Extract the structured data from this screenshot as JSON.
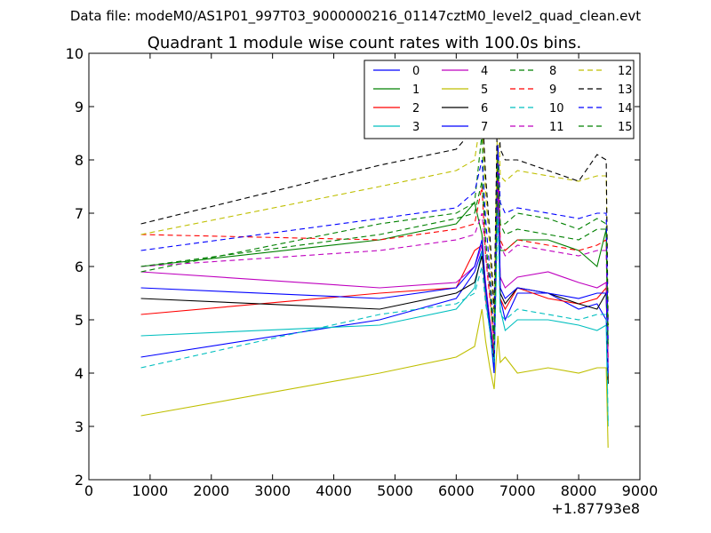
{
  "chart_data": {
    "type": "line",
    "suptitle": "Data file: modeM0/AS1P01_997T03_9000000216_01147cztM0_level2_quad_clean.evt",
    "title": "Quadrant 1 module wise count rates with 100.0s bins.",
    "xlabel": "",
    "ylabel": "",
    "x_offset_label": "+1.87793e8",
    "xlim": [
      0,
      9000
    ],
    "ylim": [
      2,
      10
    ],
    "x_ticks": [
      0,
      1000,
      2000,
      3000,
      4000,
      5000,
      6000,
      7000,
      8000,
      9000
    ],
    "y_ticks": [
      2,
      3,
      4,
      5,
      6,
      7,
      8,
      9,
      10
    ],
    "x_tick_labels": [
      "0",
      "1000",
      "2000",
      "3000",
      "4000",
      "5000",
      "6000",
      "7000",
      "8000",
      "9000"
    ],
    "y_tick_labels": [
      "2",
      "3",
      "4",
      "5",
      "6",
      "7",
      "8",
      "9",
      "10"
    ],
    "grid": false,
    "legend_position": "top-right",
    "x": [
      850,
      4750,
      6000,
      6300,
      6420,
      6480,
      6550,
      6620,
      6680,
      6720,
      6800,
      7000,
      7500,
      8000,
      8300,
      8450,
      8480
    ],
    "series": [
      {
        "name": "0",
        "color": "#0000ff",
        "style": "solid",
        "values": [
          4.3,
          5.0,
          5.4,
          5.9,
          6.3,
          5.4,
          4.8,
          4.3,
          7.9,
          5.4,
          5.0,
          5.5,
          5.5,
          5.2,
          5.3,
          5.0,
          4.1
        ]
      },
      {
        "name": "1",
        "color": "#008000",
        "style": "solid",
        "values": [
          6.0,
          6.5,
          6.8,
          7.2,
          6.6,
          5.6,
          5.0,
          4.4,
          8.2,
          6.3,
          6.3,
          6.5,
          6.5,
          6.3,
          6.0,
          6.7,
          3.8
        ]
      },
      {
        "name": "2",
        "color": "#ff0000",
        "style": "solid",
        "values": [
          5.1,
          5.5,
          5.6,
          6.3,
          6.4,
          5.4,
          4.9,
          4.3,
          8.0,
          5.4,
          5.2,
          5.6,
          5.4,
          5.3,
          5.4,
          5.6,
          3.9
        ]
      },
      {
        "name": "3",
        "color": "#00bfbf",
        "style": "solid",
        "values": [
          4.7,
          4.9,
          5.2,
          5.6,
          6.3,
          5.5,
          4.8,
          4.0,
          7.5,
          5.2,
          4.8,
          5.0,
          5.0,
          4.9,
          4.8,
          4.9,
          3.0
        ]
      },
      {
        "name": "4",
        "color": "#bf00bf",
        "style": "solid",
        "values": [
          5.9,
          5.6,
          5.7,
          6.0,
          6.4,
          5.7,
          5.0,
          4.4,
          7.6,
          5.8,
          5.6,
          5.8,
          5.9,
          5.7,
          5.6,
          5.7,
          4.2
        ]
      },
      {
        "name": "5",
        "color": "#bfbf00",
        "style": "solid",
        "values": [
          3.2,
          4.0,
          4.3,
          4.5,
          5.2,
          4.6,
          4.1,
          3.7,
          4.7,
          4.2,
          4.3,
          4.0,
          4.1,
          4.0,
          4.1,
          4.1,
          2.6
        ]
      },
      {
        "name": "6",
        "color": "#000000",
        "style": "solid",
        "values": [
          5.4,
          5.2,
          5.5,
          5.7,
          6.2,
          5.6,
          4.9,
          4.2,
          8.1,
          5.5,
          5.3,
          5.6,
          5.5,
          5.3,
          5.2,
          5.5,
          3.8
        ]
      },
      {
        "name": "7",
        "color": "#0000ff",
        "style": "solid",
        "values": [
          5.6,
          5.4,
          5.6,
          6.0,
          6.5,
          5.6,
          4.9,
          4.0,
          8.2,
          5.6,
          5.4,
          5.6,
          5.5,
          5.4,
          5.5,
          5.5,
          4.0
        ]
      },
      {
        "name": "8",
        "color": "#008000",
        "style": "dashed",
        "values": [
          5.9,
          6.8,
          7.0,
          7.2,
          8.5,
          6.5,
          5.5,
          4.5,
          8.0,
          6.8,
          6.8,
          7.0,
          6.9,
          6.7,
          6.9,
          6.8,
          4.5
        ]
      },
      {
        "name": "9",
        "color": "#ff0000",
        "style": "dashed",
        "values": [
          6.6,
          6.5,
          6.7,
          6.8,
          7.5,
          6.2,
          5.4,
          4.6,
          8.0,
          6.5,
          6.3,
          6.5,
          6.4,
          6.3,
          6.4,
          6.5,
          4.3
        ]
      },
      {
        "name": "10",
        "color": "#00bfbf",
        "style": "dashed",
        "values": [
          4.1,
          5.1,
          5.3,
          5.5,
          6.0,
          5.3,
          4.8,
          4.2,
          7.0,
          5.1,
          5.0,
          5.2,
          5.1,
          5.0,
          5.1,
          5.1,
          3.1
        ]
      },
      {
        "name": "11",
        "color": "#bf00bf",
        "style": "dashed",
        "values": [
          6.0,
          6.3,
          6.5,
          6.6,
          7.0,
          6.2,
          5.6,
          4.7,
          7.8,
          6.4,
          6.2,
          6.4,
          6.3,
          6.2,
          6.3,
          6.3,
          4.2
        ]
      },
      {
        "name": "12",
        "color": "#bfbf00",
        "style": "dashed",
        "values": [
          6.6,
          7.5,
          7.8,
          8.0,
          8.9,
          7.4,
          6.3,
          5.0,
          9.2,
          7.7,
          7.6,
          7.8,
          7.7,
          7.6,
          7.7,
          7.7,
          4.8
        ]
      },
      {
        "name": "13",
        "color": "#000000",
        "style": "dashed",
        "values": [
          6.8,
          7.9,
          8.2,
          8.6,
          9.1,
          7.7,
          6.6,
          5.2,
          9.5,
          8.2,
          8.0,
          8.0,
          7.8,
          7.6,
          8.1,
          8.0,
          4.9
        ]
      },
      {
        "name": "14",
        "color": "#0000ff",
        "style": "dashed",
        "values": [
          6.3,
          6.9,
          7.1,
          7.4,
          8.0,
          6.9,
          5.9,
          4.7,
          8.3,
          7.2,
          7.0,
          7.1,
          7.0,
          6.9,
          7.0,
          7.0,
          4.6
        ]
      },
      {
        "name": "15",
        "color": "#008000",
        "style": "dashed",
        "values": [
          6.0,
          6.6,
          6.9,
          7.0,
          7.6,
          6.5,
          5.7,
          4.6,
          8.0,
          6.8,
          6.6,
          6.7,
          6.6,
          6.5,
          6.7,
          6.7,
          4.5
        ]
      }
    ]
  }
}
